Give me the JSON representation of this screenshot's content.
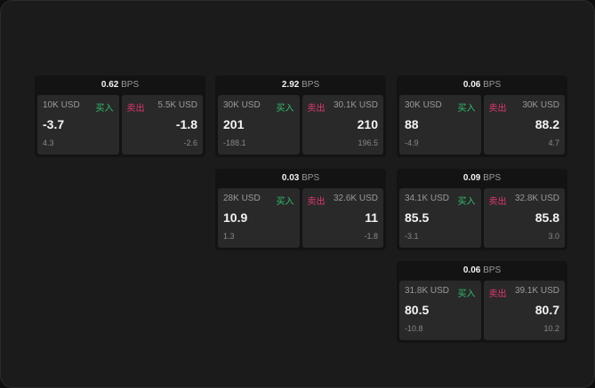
{
  "unit": "BPS",
  "colors": {
    "buy": "#2fbf6c",
    "sell": "#e0386e",
    "card": "#292929",
    "header": "#131313"
  },
  "groups": [
    {
      "spread": "0.62",
      "buy": {
        "size": "10K USD",
        "label": "买入",
        "price": "-3.7",
        "sub": "4.3"
      },
      "sell": {
        "size": "5.5K USD",
        "label": "卖出",
        "price": "-1.8",
        "sub": "-2.6"
      }
    },
    {
      "spread": "2.92",
      "buy": {
        "size": "30K USD",
        "label": "买入",
        "price": "201",
        "sub": "-188.1"
      },
      "sell": {
        "size": "30.1K USD",
        "label": "卖出",
        "price": "210",
        "sub": "196.5"
      }
    },
    {
      "spread": "0.06",
      "buy": {
        "size": "30K USD",
        "label": "买入",
        "price": "88",
        "sub": "-4.9"
      },
      "sell": {
        "size": "30K USD",
        "label": "卖出",
        "price": "88.2",
        "sub": "4.7"
      }
    },
    {
      "spread": "0.03",
      "buy": {
        "size": "28K USD",
        "label": "买入",
        "price": "10.9",
        "sub": "1.3"
      },
      "sell": {
        "size": "32.6K USD",
        "label": "卖出",
        "price": "11",
        "sub": "-1.8"
      }
    },
    {
      "spread": "0.09",
      "buy": {
        "size": "34.1K USD",
        "label": "买入",
        "price": "85.5",
        "sub": "-3.1"
      },
      "sell": {
        "size": "32.8K USD",
        "label": "卖出",
        "price": "85.8",
        "sub": "3.0"
      }
    },
    {
      "spread": "0.06",
      "buy": {
        "size": "31.8K USD",
        "label": "买入",
        "price": "80.5",
        "sub": "-10.8"
      },
      "sell": {
        "size": "39.1K USD",
        "label": "卖出",
        "price": "80.7",
        "sub": "10.2"
      }
    }
  ]
}
